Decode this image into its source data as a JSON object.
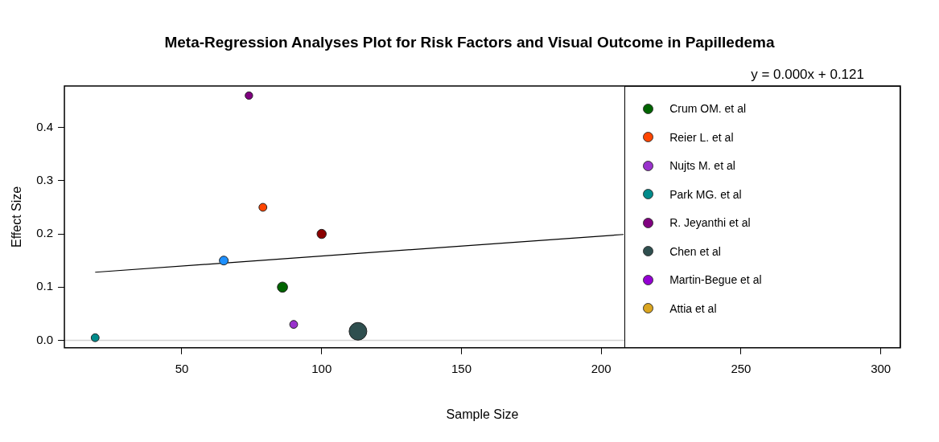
{
  "chart_data": {
    "type": "bubble",
    "title": "Meta-Regression Analyses Plot for Risk Factors and Visual Outcome in Papilledema",
    "xlabel": "Sample Size",
    "ylabel": "Effect Size",
    "xlim": [
      8,
      307
    ],
    "xticks": [
      50,
      100,
      150,
      200,
      250,
      300
    ],
    "ylim": [
      -0.014,
      0.478
    ],
    "yticks": [
      {
        "value": 0,
        "label": "0.0"
      },
      {
        "value": 0.1,
        "label": "0.1"
      },
      {
        "value": 0.2,
        "label": "0.2"
      },
      {
        "value": 0.3,
        "label": "0.3"
      },
      {
        "value": 0.4,
        "label": "0.4"
      }
    ],
    "grid": false,
    "legend": "right",
    "relative": false,
    "annotations": [
      "y = 0.000x + 0.121"
    ],
    "ref_lines": [
      {
        "axis": "y",
        "value": 0,
        "color": "#d3d3d3"
      }
    ],
    "series": [
      {
        "name": "Crum OM. et al",
        "color": "#006400",
        "x": [
          86
        ],
        "values": [
          0.1
        ],
        "sizes": [
          0.33
        ]
      },
      {
        "name": "Reier L. et al",
        "color": "#ff4500",
        "x": [
          79
        ],
        "values": [
          0.25
        ],
        "sizes": [
          0.2
        ]
      },
      {
        "name": "Nujts M. et al",
        "color": "#9932cc",
        "x": [
          90
        ],
        "values": [
          0.03
        ],
        "sizes": [
          0.2
        ]
      },
      {
        "name": "Park MG. et al",
        "color": "#008b8b",
        "x": [
          19
        ],
        "values": [
          0.005
        ],
        "sizes": [
          0.2
        ]
      },
      {
        "name": "R. Jeyanthi et al",
        "color": "#800080",
        "x": [
          74
        ],
        "values": [
          0.46
        ],
        "sizes": [
          0.18
        ]
      },
      {
        "name": "Chen et al",
        "color": "#2f4f4f",
        "x": [
          113
        ],
        "values": [
          0.017
        ],
        "sizes": [
          1
        ]
      },
      {
        "name": "Martin-Begue et al",
        "color": "#9400d3",
        "x": [
          null
        ],
        "values": [
          null
        ],
        "sizes": [
          null
        ]
      },
      {
        "name": "Attia et al",
        "color": "#daa520",
        "x": [
          null
        ],
        "values": [
          null
        ],
        "sizes": [
          null
        ]
      },
      {
        "color": "#1e90ff",
        "x": [
          65
        ],
        "values": [
          0.15
        ],
        "sizes": [
          0.25
        ]
      },
      {
        "color": "#8b0000",
        "x": [
          100
        ],
        "values": [
          0.2
        ],
        "sizes": [
          0.27
        ]
      },
      {
        "type": "line",
        "color": "#000000",
        "x": [
          19,
          208
        ],
        "values": [
          0.128,
          0.199
        ],
        "marker": "none",
        "line_style": "solid"
      }
    ]
  }
}
